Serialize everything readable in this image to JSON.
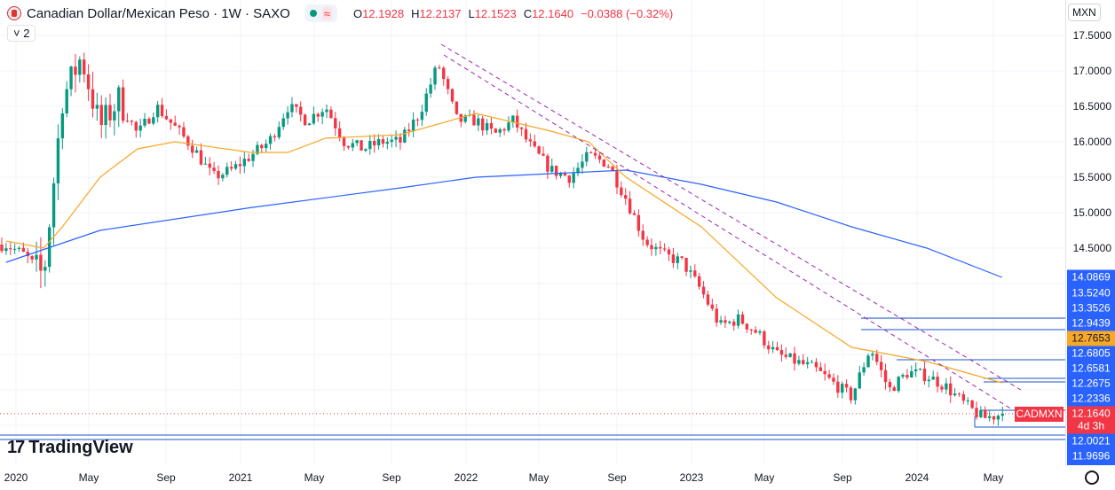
{
  "header": {
    "symbol": "Canadian Dollar/Mexican Peso · 1W · SAXO",
    "open_label": "O",
    "open": "12.1928",
    "high_label": "H",
    "high": "12.2137",
    "low_label": "L",
    "low": "12.1523",
    "close_label": "C",
    "close": "12.1640",
    "change": "−0.0388 (−0.32%)",
    "indicators_toggle": "2",
    "wave_icon": "≈"
  },
  "currency_button": "MXN",
  "symbol_tag": "CADMXN",
  "logo": {
    "text": "TradingView",
    "mark": "17"
  },
  "colors": {
    "up": "#089981",
    "down": "#f23645",
    "ma_fast": "#f6a623",
    "ma_slow": "#2962ff",
    "levels": "#1e53c9",
    "trendline": "#9c27b0"
  },
  "chart_data": {
    "type": "candlestick",
    "interval": "1W",
    "ylim": [
      11.9,
      17.8
    ],
    "y_ticks": [
      "17.5000",
      "17.0000",
      "16.5000",
      "16.0000",
      "15.5000",
      "15.0000",
      "14.5000"
    ],
    "x_ticks": [
      "2020",
      "May",
      "Sep",
      "2021",
      "May",
      "Sep",
      "2022",
      "May",
      "Sep",
      "2023",
      "May",
      "Sep",
      "2024",
      "May"
    ],
    "start_month": "2019-12",
    "monthly_close_approx": [
      14.55,
      14.4,
      14.1,
      16.6,
      17.2,
      16.2,
      16.6,
      16.1,
      16.5,
      16.2,
      15.9,
      15.5,
      15.6,
      15.8,
      16.0,
      16.5,
      16.3,
      16.5,
      16.0,
      15.9,
      16.0,
      16.0,
      16.4,
      17.1,
      16.3,
      16.3,
      16.1,
      16.3,
      15.9,
      15.6,
      15.5,
      15.8,
      15.7,
      15.2,
      14.6,
      14.4,
      14.3,
      13.9,
      13.4,
      13.5,
      13.3,
      13.0,
      12.9,
      12.8,
      12.6,
      12.4,
      13.1,
      12.5,
      12.75,
      12.7,
      12.55,
      12.3,
      12.1,
      12.16
    ],
    "ma_fast": [
      [
        "2019-12",
        14.6
      ],
      [
        "2020-02",
        14.5
      ],
      [
        "2020-03",
        14.8
      ],
      [
        "2020-05",
        15.5
      ],
      [
        "2020-07",
        15.9
      ],
      [
        "2020-09",
        16.0
      ],
      [
        "2021-01",
        15.85
      ],
      [
        "2021-03",
        15.85
      ],
      [
        "2021-05",
        16.05
      ],
      [
        "2021-09",
        16.1
      ],
      [
        "2022-01",
        16.4
      ],
      [
        "2022-05",
        16.15
      ],
      [
        "2022-07",
        16.0
      ],
      [
        "2022-09",
        15.5
      ],
      [
        "2023-01",
        14.8
      ],
      [
        "2023-05",
        13.8
      ],
      [
        "2023-09",
        13.1
      ],
      [
        "2024-01",
        12.9
      ],
      [
        "2024-05",
        12.6
      ]
    ],
    "ma_slow": [
      [
        "2019-12",
        14.3
      ],
      [
        "2020-05",
        14.75
      ],
      [
        "2021-01",
        15.07
      ],
      [
        "2021-09",
        15.35
      ],
      [
        "2022-01",
        15.5
      ],
      [
        "2022-09",
        15.6
      ],
      [
        "2023-01",
        15.4
      ],
      [
        "2023-05",
        15.15
      ],
      [
        "2023-09",
        14.8
      ],
      [
        "2024-01",
        14.5
      ],
      [
        "2024-05",
        14.0869
      ]
    ],
    "price_labels": [
      {
        "value": "14.0869",
        "kind": "ma_slow"
      },
      {
        "value": "13.5240",
        "kind": "level"
      },
      {
        "value": "13.3526",
        "kind": "level"
      },
      {
        "value": "12.9439",
        "kind": "level"
      },
      {
        "value": "12.7653",
        "kind": "ma_fast"
      },
      {
        "value": "12.6805",
        "kind": "level"
      },
      {
        "value": "12.6581",
        "kind": "level"
      },
      {
        "value": "12.2675",
        "kind": "level"
      },
      {
        "value": "12.2336",
        "kind": "level"
      },
      {
        "value": "12.1640",
        "kind": "last"
      },
      {
        "value": "4d 3h",
        "kind": "countdown"
      },
      {
        "value": "12.0021",
        "kind": "level"
      },
      {
        "value": "11.9696",
        "kind": "level"
      }
    ]
  }
}
